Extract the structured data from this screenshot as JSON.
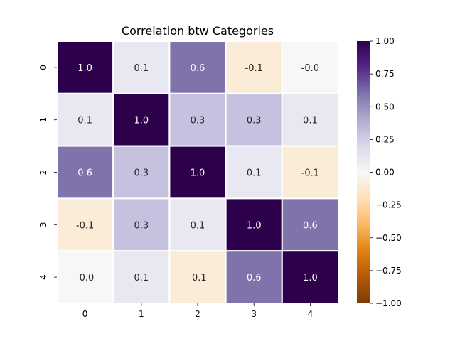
{
  "chart_data": {
    "type": "heatmap",
    "title": "Correlation btw Categories",
    "xlabel": "",
    "ylabel": "",
    "x_categories": [
      "0",
      "1",
      "2",
      "3",
      "4"
    ],
    "y_categories": [
      "0",
      "1",
      "2",
      "3",
      "4"
    ],
    "values": [
      [
        1.0,
        0.1,
        0.6,
        -0.1,
        -0.0
      ],
      [
        0.1,
        1.0,
        0.3,
        0.3,
        0.1
      ],
      [
        0.6,
        0.3,
        1.0,
        0.1,
        -0.1
      ],
      [
        -0.1,
        0.3,
        0.1,
        1.0,
        0.6
      ],
      [
        -0.0,
        0.1,
        -0.1,
        0.6,
        1.0
      ]
    ],
    "cell_labels": [
      [
        "1.0",
        "0.1",
        "0.6",
        "-0.1",
        "-0.0"
      ],
      [
        "0.1",
        "1.0",
        "0.3",
        "0.3",
        "0.1"
      ],
      [
        "0.6",
        "0.3",
        "1.0",
        "0.1",
        "-0.1"
      ],
      [
        "-0.1",
        "0.3",
        "0.1",
        "1.0",
        "0.6"
      ],
      [
        "-0.0",
        "0.1",
        "-0.1",
        "0.6",
        "1.0"
      ]
    ],
    "colorbar": {
      "vmin": -1.0,
      "vmax": 1.0,
      "ticks": [
        "1.00",
        "0.75",
        "0.50",
        "0.25",
        "0.00",
        "−0.25",
        "−0.50",
        "−0.75",
        "−1.00"
      ],
      "colormap": "PuOr",
      "colors": {
        "low": "#7f3b08",
        "mid": "#f7f7f7",
        "high": "#2d004b"
      }
    },
    "grid": false,
    "cell_border_color": "#ffffff"
  }
}
